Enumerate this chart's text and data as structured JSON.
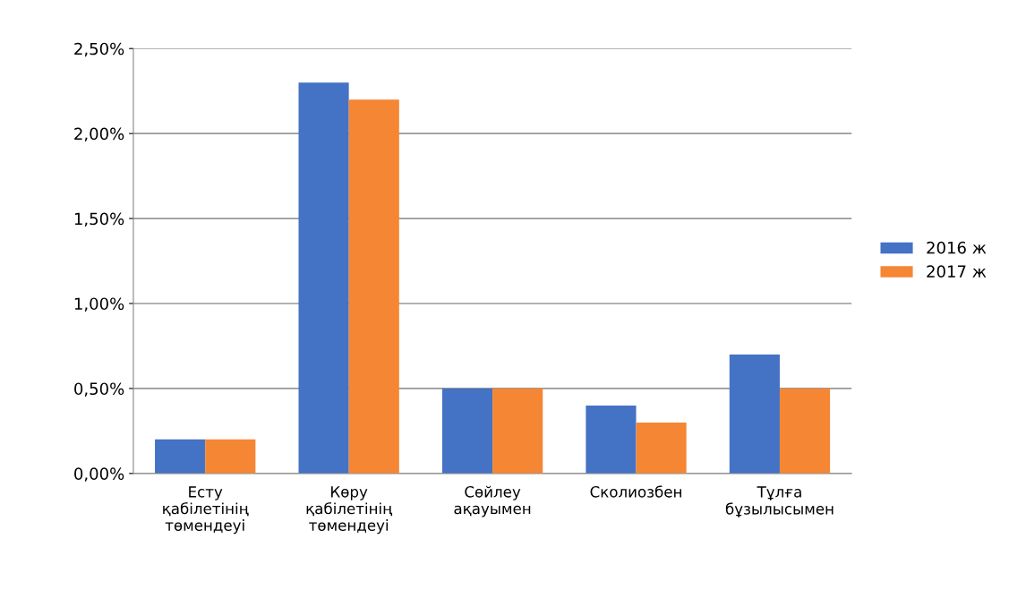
{
  "chart_data": {
    "type": "bar",
    "categories": [
      "Есту\nқабілетінің\nтөмендеуі",
      "Көру\nқабілетінің\nтөмендеуі",
      "Сөйлеу\nақауымен",
      "Сколиозбен",
      "Тұлға\nбұзылысымен"
    ],
    "series": [
      {
        "name": "2016 ж",
        "color": "#4472c4",
        "values": [
          0.2,
          2.3,
          0.5,
          0.4,
          0.7
        ]
      },
      {
        "name": "2017 ж",
        "color": "#f58634",
        "values": [
          0.2,
          2.2,
          0.5,
          0.3,
          0.5
        ]
      }
    ],
    "ylim": [
      0,
      2.5
    ],
    "yticks": [
      {
        "value": 0,
        "label": "0,00%"
      },
      {
        "value": 0.5,
        "label": "0,50%"
      },
      {
        "value": 1.0,
        "label": "1,00%"
      },
      {
        "value": 1.5,
        "label": "1,50%"
      },
      {
        "value": 2.0,
        "label": "2,00%"
      },
      {
        "value": 2.5,
        "label": "2,50%"
      }
    ],
    "grid": "y",
    "legend": "right"
  }
}
